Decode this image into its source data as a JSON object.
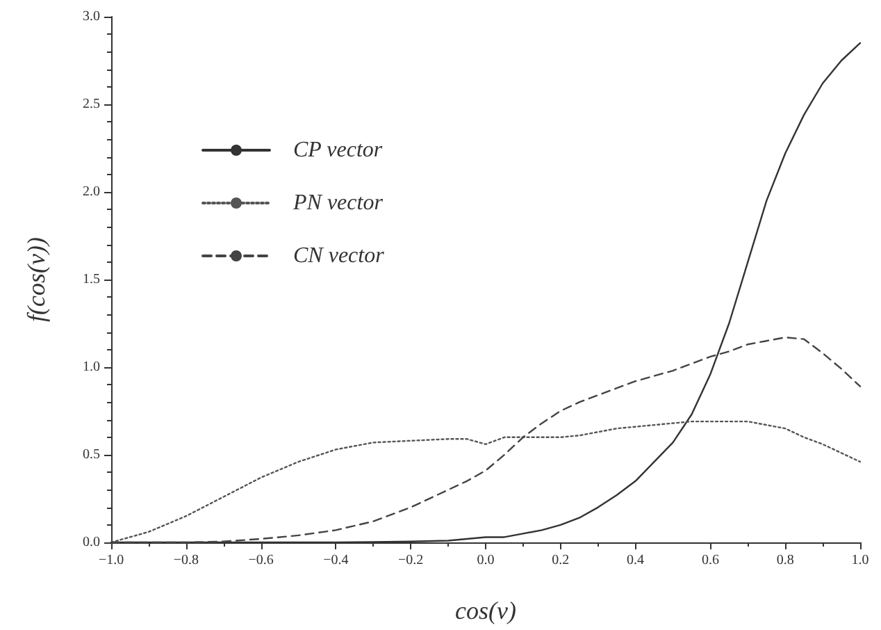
{
  "chart_data": {
    "type": "line",
    "xlabel": "cos(v)",
    "ylabel": "f(cos(v))",
    "x": [
      -1.0,
      -0.9,
      -0.8,
      -0.7,
      -0.6,
      -0.5,
      -0.4,
      -0.3,
      -0.2,
      -0.1,
      -0.05,
      0.0,
      0.05,
      0.1,
      0.15,
      0.2,
      0.25,
      0.3,
      0.35,
      0.4,
      0.45,
      0.5,
      0.55,
      0.6,
      0.65,
      0.7,
      0.75,
      0.8,
      0.85,
      0.9,
      0.95,
      1.0
    ],
    "series": [
      {
        "name": "CP vector",
        "color": "#333333",
        "line_style": "solid",
        "values": [
          0,
          0,
          0,
          0,
          0,
          0,
          0,
          0.002,
          0.005,
          0.01,
          0.02,
          0.03,
          0.03,
          0.05,
          0.07,
          0.1,
          0.14,
          0.2,
          0.27,
          0.35,
          0.46,
          0.57,
          0.73,
          0.96,
          1.25,
          1.6,
          1.95,
          2.22,
          2.44,
          2.62,
          2.75,
          2.85
        ]
      },
      {
        "name": "PN vector",
        "color": "#555555",
        "line_style": "dotted",
        "values": [
          0,
          0.06,
          0.15,
          0.26,
          0.37,
          0.46,
          0.53,
          0.57,
          0.58,
          0.59,
          0.59,
          0.56,
          0.6,
          0.6,
          0.6,
          0.6,
          0.61,
          0.63,
          0.65,
          0.66,
          0.67,
          0.68,
          0.69,
          0.69,
          0.69,
          0.69,
          0.67,
          0.65,
          0.6,
          0.56,
          0.51,
          0.46
        ]
      },
      {
        "name": "CN vector",
        "color": "#444444",
        "line_style": "dashed",
        "values": [
          0,
          0,
          0,
          0.005,
          0.02,
          0.04,
          0.07,
          0.12,
          0.2,
          0.3,
          0.35,
          0.41,
          0.5,
          0.6,
          0.68,
          0.75,
          0.8,
          0.84,
          0.88,
          0.92,
          0.95,
          0.98,
          1.02,
          1.06,
          1.09,
          1.13,
          1.15,
          1.17,
          1.16,
          1.08,
          0.99,
          0.89
        ]
      }
    ],
    "xlim": [
      -1.0,
      1.0
    ],
    "xticks": [
      {
        "value": -1.0,
        "label": "−1.0"
      },
      {
        "value": -0.8,
        "label": "−0.8"
      },
      {
        "value": -0.6,
        "label": "−0.6"
      },
      {
        "value": -0.4,
        "label": "−0.4"
      },
      {
        "value": -0.2,
        "label": "−0.2"
      },
      {
        "value": 0,
        "label": "0.0"
      },
      {
        "value": 0.2,
        "label": "0.2"
      },
      {
        "value": 0.4,
        "label": "0.4"
      },
      {
        "value": 0.6,
        "label": "0.6"
      },
      {
        "value": 0.8,
        "label": "0.8"
      },
      {
        "value": 1.0,
        "label": "1.0"
      }
    ],
    "ylim": [
      0,
      3.0
    ],
    "yticks": [
      {
        "value": 0,
        "label": "0.0"
      },
      {
        "value": 0.5,
        "label": "0.5"
      },
      {
        "value": 1.0,
        "label": "1.0"
      },
      {
        "value": 1.5,
        "label": "1.5"
      },
      {
        "value": 2.0,
        "label": "2.0"
      },
      {
        "value": 2.5,
        "label": "2.5"
      },
      {
        "value": 3.0,
        "label": "3.0"
      }
    ],
    "grid": false,
    "legend": "top left",
    "marker": "none"
  }
}
